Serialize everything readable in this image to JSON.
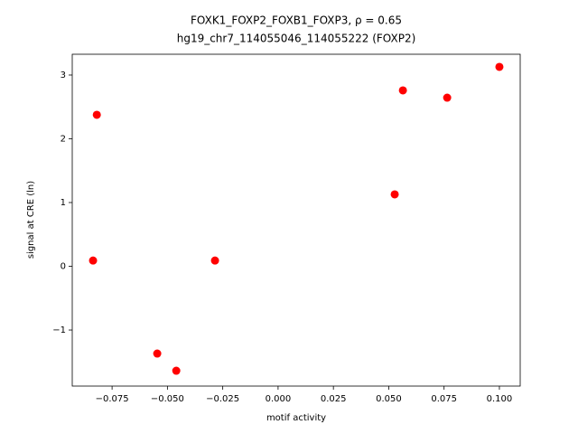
{
  "chart_data": {
    "type": "scatter",
    "title": "FOXK1_FOXP2_FOXB1_FOXP3, ρ = 0.65",
    "subtitle": "hg19_chr7_114055046_114055222 (FOXP2)",
    "x_label": "motif activity",
    "y_label": "signal at CRE (ln)",
    "color": "#ff0000",
    "x": [
      -0.0836,
      -0.0819,
      -0.0546,
      -0.046,
      -0.0285,
      0.0527,
      0.0564,
      0.0764,
      0.1
    ],
    "values": [
      0.09,
      2.376,
      -1.369,
      -1.638,
      0.09,
      1.128,
      2.759,
      2.645,
      3.128
    ],
    "xlim": [
      -0.093,
      0.1094
    ],
    "ylim": [
      -1.879,
      3.326
    ],
    "xticks": [
      {
        "value": -0.075,
        "label": "−0.075"
      },
      {
        "value": -0.05,
        "label": "−0.050"
      },
      {
        "value": -0.025,
        "label": "−0.025"
      },
      {
        "value": 0,
        "label": "0.000"
      },
      0.025,
      {
        "value": 0.05,
        "label": "0.050"
      },
      0.075,
      {
        "value": 0.1,
        "label": "0.100"
      }
    ],
    "yticks": [
      {
        "value": -1,
        "label": "−1"
      },
      0,
      1,
      2,
      3
    ]
  }
}
